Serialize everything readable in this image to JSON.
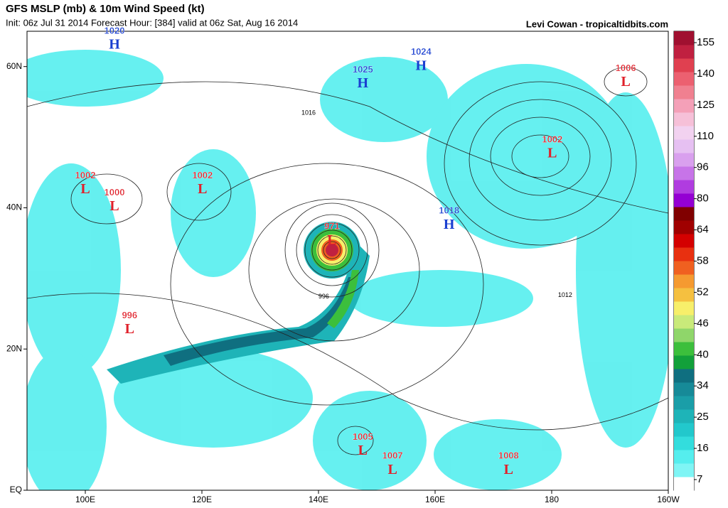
{
  "header": {
    "title": "GFS MSLP (mb) & 10m Wind Speed (kt)",
    "subtitle": "Init: 06z Jul 31 2014 Forecast Hour: [384] valid at 06z Sat, Aug 16 2014",
    "credit": "Levi Cowan - tropicaltidbits.com"
  },
  "map": {
    "lonlim": [
      90,
      200
    ],
    "latlim": [
      0,
      65
    ],
    "lon_ticks": [
      {
        "value": 100,
        "label": "100E"
      },
      {
        "value": 120,
        "label": "120E"
      },
      {
        "value": 140,
        "label": "140E"
      },
      {
        "value": 160,
        "label": "160E"
      },
      {
        "value": 180,
        "label": "180"
      },
      {
        "value": 200,
        "label": "160W"
      }
    ],
    "lat_ticks": [
      {
        "value": 0,
        "label": "EQ"
      },
      {
        "value": 20,
        "label": "20N"
      },
      {
        "value": 40,
        "label": "40N"
      },
      {
        "value": 60,
        "label": "60N"
      }
    ],
    "centers": [
      {
        "letter": "H",
        "value": "1020",
        "lon": 105,
        "lat": 63
      },
      {
        "letter": "H",
        "value": "1025",
        "lon": 147.6,
        "lat": 57.5
      },
      {
        "letter": "H",
        "value": "1024",
        "lon": 157.6,
        "lat": 60
      },
      {
        "letter": "L",
        "value": "1006",
        "lon": 192.7,
        "lat": 57.7
      },
      {
        "letter": "L",
        "value": "1002",
        "lon": 180.1,
        "lat": 47.6
      },
      {
        "letter": "L",
        "value": "1002",
        "lon": 100,
        "lat": 42.5
      },
      {
        "letter": "L",
        "value": "1000",
        "lon": 105,
        "lat": 40.1
      },
      {
        "letter": "L",
        "value": "1002",
        "lon": 120.1,
        "lat": 42.5
      },
      {
        "letter": "H",
        "value": "1018",
        "lon": 162.4,
        "lat": 37.5
      },
      {
        "letter": "L",
        "value": "971",
        "lon": 142.3,
        "lat": 35.3
      },
      {
        "letter": "L",
        "value": "996",
        "lon": 107.6,
        "lat": 22.7
      },
      {
        "letter": "L",
        "value": "1005",
        "lon": 147.6,
        "lat": 5.5
      },
      {
        "letter": "L",
        "value": "1007",
        "lon": 152.7,
        "lat": 2.8
      },
      {
        "letter": "L",
        "value": "1008",
        "lon": 172.6,
        "lat": 2.8
      }
    ],
    "high_color": "#1a3fd0",
    "low_color": "#e0202a",
    "contour_labels": [
      {
        "text": "1016",
        "lon": 138.3,
        "lat": 53.4
      },
      {
        "text": "996",
        "lon": 140.9,
        "lat": 27.4
      },
      {
        "text": "1012",
        "lon": 182.3,
        "lat": 27.6
      }
    ]
  },
  "colorbar": {
    "ticks": [
      155,
      140,
      125,
      110,
      96,
      80,
      64,
      58,
      52,
      46,
      40,
      34,
      25,
      16,
      7
    ],
    "colors": [
      "#ffffff",
      "#7ff5f5",
      "#55eeee",
      "#33dddd",
      "#22c8cc",
      "#1eb4b8",
      "#1a9ea8",
      "#168a98",
      "#0f6f80",
      "#12a03a",
      "#3cbf3c",
      "#8fd66a",
      "#c9ea7a",
      "#f7ef6a",
      "#f5c040",
      "#f59a30",
      "#f06020",
      "#e83010",
      "#d40000",
      "#a00000",
      "#800000",
      "#9400d3",
      "#b03ce0",
      "#c774e8",
      "#d9a0ee",
      "#e6c0f2",
      "#f2d2f0",
      "#f6c0d8",
      "#f4a0b8",
      "#f08090",
      "#ec6070",
      "#e04050",
      "#c02040",
      "#a01030"
    ]
  }
}
